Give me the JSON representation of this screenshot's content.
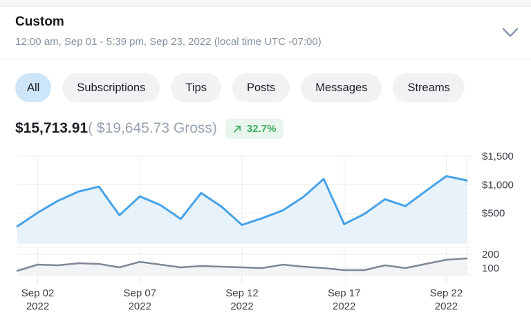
{
  "header": {
    "title": "Custom",
    "date_range": "12:00 am, Sep 01 - 5:39 pm, Sep 23, 2022 (local time UTC -07:00)"
  },
  "filters": {
    "items": [
      {
        "label": "All",
        "active": true
      },
      {
        "label": "Subscriptions",
        "active": false
      },
      {
        "label": "Tips",
        "active": false
      },
      {
        "label": "Posts",
        "active": false
      },
      {
        "label": "Messages",
        "active": false
      },
      {
        "label": "Streams",
        "active": false
      }
    ]
  },
  "summary": {
    "net_amount": "$15,713.91",
    "gross_text": "( $19,645.73 Gross)",
    "change": "32.7%",
    "change_direction": "up"
  },
  "colors": {
    "accent_blue": "#47a2e8",
    "blue_fill": "#e4f0fa",
    "gray_line": "#7d8894",
    "gray_fill": "#f1f2f4",
    "positive_green": "#3faf60",
    "badge_bg": "#e8f6ed",
    "active_tab_bg": "#cde5f8",
    "tab_bg": "#f1f2f3",
    "grid": "#e9ebee",
    "axis_text": "#3b4046"
  },
  "x_axis": {
    "tick_labels": [
      "Sep 02",
      "Sep 07",
      "Sep 12",
      "Sep 17",
      "Sep 22"
    ],
    "year_label": "2022",
    "tick_indices": [
      1,
      6,
      11,
      16,
      21
    ]
  },
  "chart_data": [
    {
      "type": "area",
      "name": "net-earnings-daily",
      "x": [
        "Sep 01",
        "Sep 02",
        "Sep 03",
        "Sep 04",
        "Sep 05",
        "Sep 06",
        "Sep 07",
        "Sep 08",
        "Sep 09",
        "Sep 10",
        "Sep 11",
        "Sep 12",
        "Sep 13",
        "Sep 14",
        "Sep 15",
        "Sep 16",
        "Sep 17",
        "Sep 18",
        "Sep 19",
        "Sep 20",
        "Sep 21",
        "Sep 22",
        "Sep 23"
      ],
      "values": [
        270,
        510,
        720,
        880,
        965,
        465,
        795,
        645,
        400,
        855,
        615,
        295,
        415,
        550,
        785,
        1100,
        310,
        490,
        745,
        625,
        890,
        1150,
        1075
      ],
      "ylim": [
        0,
        1500
      ],
      "yticks": [
        {
          "value": 500,
          "label": "$500"
        },
        {
          "value": 1000,
          "label": "$1,000"
        },
        {
          "value": 1500,
          "label": "$1,500"
        }
      ],
      "legend": "none",
      "grid": "on",
      "line_color": "#47a2e8",
      "fill_color": "#e4f0fa"
    },
    {
      "type": "area",
      "name": "secondary-metric-daily",
      "x": [
        "Sep 01",
        "Sep 02",
        "Sep 03",
        "Sep 04",
        "Sep 05",
        "Sep 06",
        "Sep 07",
        "Sep 08",
        "Sep 09",
        "Sep 10",
        "Sep 11",
        "Sep 12",
        "Sep 13",
        "Sep 14",
        "Sep 15",
        "Sep 16",
        "Sep 17",
        "Sep 18",
        "Sep 19",
        "Sep 20",
        "Sep 21",
        "Sep 22",
        "Sep 23"
      ],
      "values": [
        80,
        125,
        120,
        135,
        130,
        105,
        145,
        125,
        105,
        115,
        110,
        105,
        100,
        125,
        110,
        100,
        85,
        85,
        120,
        100,
        130,
        160,
        170
      ],
      "ylim": [
        0,
        250
      ],
      "yticks": [
        {
          "value": 100,
          "label": "100"
        },
        {
          "value": 200,
          "label": "200"
        }
      ],
      "legend": "none",
      "grid": "on",
      "line_color": "#7d8894",
      "fill_color": "#f1f2f4"
    }
  ]
}
